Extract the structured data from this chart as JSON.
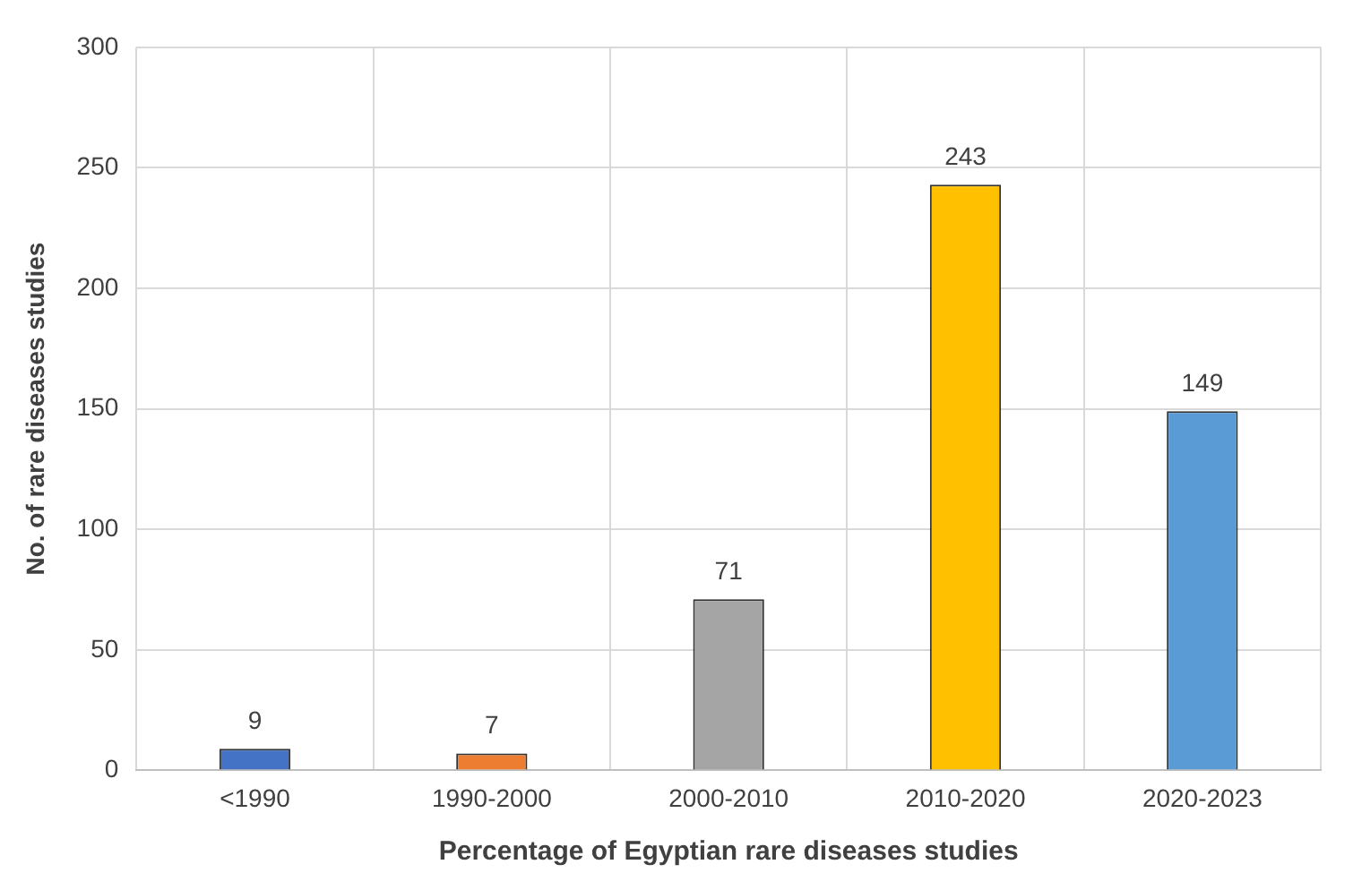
{
  "chart_data": {
    "type": "bar",
    "xlabel": "Percentage of Egyptian rare diseases studies",
    "ylabel": "No. of rare diseases studies",
    "categories": [
      "<1990",
      "1990-2000",
      "2000-2010",
      "2010-2020",
      "2020-2023"
    ],
    "values": [
      9,
      7,
      71,
      243,
      149
    ],
    "colors": [
      "#4472c4",
      "#ed7d31",
      "#a5a5a5",
      "#ffc000",
      "#5b9bd5"
    ],
    "ylim": [
      0,
      300
    ],
    "yticks": [
      0,
      50,
      100,
      150,
      200,
      250,
      300
    ],
    "grid": true,
    "data_labels": true
  }
}
